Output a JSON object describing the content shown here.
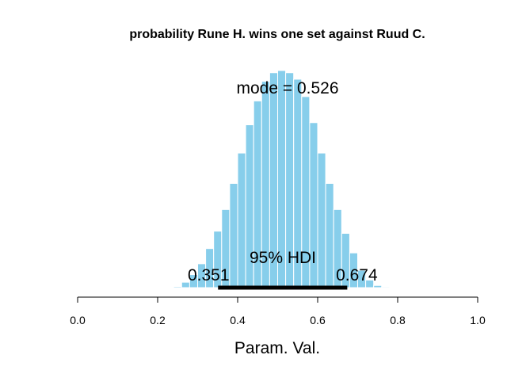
{
  "chart_data": {
    "type": "bar",
    "title": "probability Rune H. wins one set against Ruud C.",
    "xlabel": "Param. Val.",
    "ylabel": "",
    "xlim": [
      0.0,
      1.0
    ],
    "xticks": [
      "0.0",
      "0.2",
      "0.4",
      "0.6",
      "0.8",
      "1.0"
    ],
    "bar_color": "#87CEEB",
    "bin_width": 0.02,
    "bin_starts": [
      0.24,
      0.26,
      0.28,
      0.3,
      0.32,
      0.34,
      0.36,
      0.38,
      0.4,
      0.42,
      0.44,
      0.46,
      0.48,
      0.5,
      0.52,
      0.54,
      0.56,
      0.58,
      0.6,
      0.62,
      0.64,
      0.66,
      0.68,
      0.7,
      0.72,
      0.74,
      0.76
    ],
    "values": [
      0.005,
      0.025,
      0.06,
      0.11,
      0.18,
      0.26,
      0.36,
      0.48,
      0.62,
      0.75,
      0.86,
      0.95,
      0.99,
      1.0,
      0.99,
      0.96,
      0.88,
      0.76,
      0.62,
      0.48,
      0.36,
      0.25,
      0.16,
      0.08,
      0.035,
      0.01,
      0.004
    ],
    "annotations": {
      "mode_label": "mode = 0.526",
      "hdi_label": "95% HDI",
      "hdi_low_label": "0.351",
      "hdi_high_label": "0.674"
    },
    "hdi": [
      0.351,
      0.674
    ],
    "mode": 0.526
  }
}
